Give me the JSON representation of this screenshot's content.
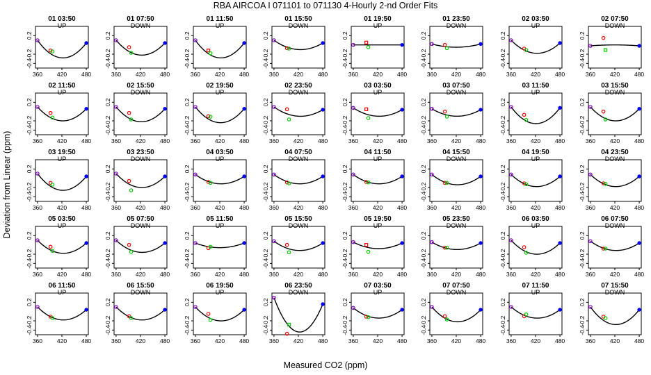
{
  "title": "RBA   AIRCOA I   071101 to 071130   4-Hourly 2-nd Order Fits",
  "xlabel": "Measured CO2 (ppm)",
  "ylabel": "Deviation from Linear (ppm)",
  "colors": {
    "curve": "#000000",
    "ref_points": "#0000ff",
    "up_points": "#ff0000",
    "fit_points": "#00cc00",
    "axes": "#000000"
  },
  "chart_data": {
    "type": "scatter",
    "xlim": [
      355,
      485
    ],
    "ylim": [
      -0.5,
      0.4
    ],
    "x_ticks": [
      360,
      420,
      480
    ],
    "x_tick_labels": [
      "360",
      "420",
      "480"
    ],
    "y_ticks": [
      0.2,
      -0.2,
      -0.4
    ],
    "y_tick_labels": [
      "0.2",
      "-0.2",
      "-0.4"
    ],
    "curve_reference_x": [
      360,
      480
    ],
    "panels": [
      {
        "time": "01 03:50",
        "dir": "UP",
        "curve": [
          0.1,
          -0.28,
          0.04
        ],
        "red": [
          392,
          -0.12
        ],
        "green": [
          397,
          -0.14
        ],
        "red_shape": "circle"
      },
      {
        "time": "01 07:50",
        "dir": "DOWN",
        "curve": [
          0.1,
          -0.22,
          0.04
        ],
        "red": [
          392,
          -0.05
        ],
        "green": [
          397,
          -0.17
        ],
        "red_shape": "circle"
      },
      {
        "time": "01 11:50",
        "dir": "UP",
        "curve": [
          0.1,
          -0.28,
          0.04
        ],
        "red": [
          392,
          -0.12
        ],
        "green": [
          397,
          -0.18
        ],
        "red_shape": "square"
      },
      {
        "time": "01 15:50",
        "dir": "DOWN",
        "curve": [
          0.1,
          -0.1,
          0.04
        ],
        "red": [
          392,
          -0.07
        ],
        "green": [
          397,
          -0.08
        ],
        "red_shape": "circle"
      },
      {
        "time": "01 19:50",
        "dir": "UP",
        "curve": [
          0.0,
          0.0,
          0.0
        ],
        "red": [
          392,
          0.05
        ],
        "green": [
          397,
          -0.05
        ],
        "red_shape": "square"
      },
      {
        "time": "01 23:50",
        "dir": "DOWN",
        "curve": [
          0.02,
          -0.05,
          0.02
        ],
        "red": [
          392,
          0.0
        ],
        "green": [
          397,
          -0.07
        ],
        "red_shape": "circle"
      },
      {
        "time": "02 03:50",
        "dir": "UP",
        "curve": [
          0.1,
          -0.18,
          0.04
        ],
        "red": [
          392,
          -0.08
        ],
        "green": [
          397,
          -0.11
        ],
        "red_shape": "circle"
      },
      {
        "time": "02 07:50",
        "dir": "DOWN",
        "curve": [
          -0.02,
          0.0,
          -0.02
        ],
        "red": [
          392,
          0.15
        ],
        "green": [
          397,
          -0.11
        ],
        "red_shape": "circle",
        "green_shape": "square"
      },
      {
        "time": "02 11:50",
        "dir": "UP",
        "curve": [
          0.1,
          -0.2,
          0.06
        ],
        "red": [
          392,
          -0.03
        ],
        "green": [
          397,
          -0.13
        ],
        "red_shape": "circle"
      },
      {
        "time": "02 15:50",
        "dir": "DOWN",
        "curve": [
          0.1,
          -0.22,
          0.06
        ],
        "red": [
          392,
          -0.03
        ],
        "green": [
          397,
          -0.17
        ],
        "red_shape": "circle"
      },
      {
        "time": "02 19:50",
        "dir": "UP",
        "curve": [
          0.1,
          -0.24,
          0.06
        ],
        "red": [
          392,
          -0.1
        ],
        "green": [
          397,
          -0.11
        ],
        "red_shape": "circle"
      },
      {
        "time": "02 23:50",
        "dir": "DOWN",
        "curve": [
          0.1,
          -0.1,
          0.04
        ],
        "red": [
          392,
          0.05
        ],
        "green": [
          397,
          -0.17
        ],
        "red_shape": "circle"
      },
      {
        "time": "03 03:50",
        "dir": "UP",
        "curve": [
          0.08,
          -0.1,
          0.04
        ],
        "red": [
          392,
          0.05
        ],
        "green": [
          397,
          -0.14
        ],
        "red_shape": "square"
      },
      {
        "time": "03 07:50",
        "dir": "DOWN",
        "curve": [
          0.06,
          -0.1,
          0.04
        ],
        "red": [
          392,
          0.0
        ],
        "green": [
          397,
          -0.11
        ],
        "red_shape": "circle"
      },
      {
        "time": "03 11:50",
        "dir": "UP",
        "curve": [
          0.1,
          -0.26,
          0.08
        ],
        "red": [
          392,
          -0.07
        ],
        "green": [
          397,
          -0.18
        ],
        "red_shape": "circle"
      },
      {
        "time": "03 15:50",
        "dir": "DOWN",
        "curve": [
          0.1,
          -0.2,
          0.06
        ],
        "red": [
          392,
          0.0
        ],
        "green": [
          397,
          -0.17
        ],
        "red_shape": "circle"
      },
      {
        "time": "03 19:50",
        "dir": "UP",
        "curve": [
          0.1,
          -0.26,
          0.04
        ],
        "red": [
          392,
          -0.1
        ],
        "green": [
          397,
          -0.14
        ],
        "red_shape": "circle"
      },
      {
        "time": "03 23:50",
        "dir": "DOWN",
        "curve": [
          0.1,
          -0.2,
          0.04
        ],
        "red": [
          392,
          -0.06
        ],
        "green": [
          397,
          -0.26
        ],
        "red_shape": "circle"
      },
      {
        "time": "04 03:50",
        "dir": "UP",
        "curve": [
          0.08,
          -0.12,
          0.04
        ],
        "red": [
          392,
          -0.08
        ],
        "green": [
          397,
          -0.1
        ],
        "red_shape": "circle"
      },
      {
        "time": "04 07:50",
        "dir": "DOWN",
        "curve": [
          0.08,
          -0.12,
          0.04
        ],
        "red": [
          392,
          -0.09
        ],
        "green": [
          397,
          -0.11
        ],
        "red_shape": "circle"
      },
      {
        "time": "04 11:50",
        "dir": "UP",
        "curve": [
          0.08,
          -0.12,
          0.04
        ],
        "red": [
          392,
          -0.08
        ],
        "green": [
          397,
          -0.09
        ],
        "red_shape": "circle"
      },
      {
        "time": "04 15:50",
        "dir": "DOWN",
        "curve": [
          0.08,
          -0.14,
          0.04
        ],
        "red": [
          392,
          -0.1
        ],
        "green": [
          397,
          -0.1
        ],
        "red_shape": "circle"
      },
      {
        "time": "04 19:50",
        "dir": "UP",
        "curve": [
          0.08,
          -0.18,
          0.04
        ],
        "red": [
          392,
          -0.11
        ],
        "green": [
          397,
          -0.13
        ],
        "red_shape": "circle"
      },
      {
        "time": "04 23:50",
        "dir": "DOWN",
        "curve": [
          0.08,
          -0.18,
          0.04
        ],
        "red": [
          392,
          -0.11
        ],
        "green": [
          397,
          -0.12
        ],
        "red_shape": "circle"
      },
      {
        "time": "05 03:50",
        "dir": "UP",
        "curve": [
          0.1,
          -0.18,
          0.04
        ],
        "red": [
          392,
          -0.04
        ],
        "green": [
          397,
          -0.13
        ],
        "red_shape": "circle"
      },
      {
        "time": "05 07:50",
        "dir": "DOWN",
        "curve": [
          0.1,
          -0.16,
          0.04
        ],
        "red": [
          392,
          0.0
        ],
        "green": [
          397,
          -0.15
        ],
        "red_shape": "circle"
      },
      {
        "time": "05 11:50",
        "dir": "UP",
        "curve": [
          0.04,
          -0.06,
          0.04
        ],
        "red": [
          392,
          -0.07
        ],
        "green": [
          397,
          -0.04
        ],
        "red_shape": "circle"
      },
      {
        "time": "05 15:50",
        "dir": "DOWN",
        "curve": [
          0.08,
          -0.12,
          0.04
        ],
        "red": [
          392,
          0.0
        ],
        "green": [
          397,
          -0.16
        ],
        "red_shape": "circle"
      },
      {
        "time": "05 19:50",
        "dir": "UP",
        "curve": [
          0.06,
          -0.08,
          0.04
        ],
        "red": [
          392,
          0.0
        ],
        "green": [
          397,
          -0.15
        ],
        "red_shape": "square"
      },
      {
        "time": "05 23:50",
        "dir": "DOWN",
        "curve": [
          0.06,
          -0.1,
          0.04
        ],
        "red": [
          392,
          -0.06
        ],
        "green": [
          397,
          -0.06
        ],
        "red_shape": "circle"
      },
      {
        "time": "06 03:50",
        "dir": "UP",
        "curve": [
          0.1,
          -0.2,
          0.04
        ],
        "red": [
          392,
          -0.05
        ],
        "green": [
          397,
          -0.17
        ],
        "red_shape": "circle"
      },
      {
        "time": "06 07:50",
        "dir": "DOWN",
        "curve": [
          0.08,
          -0.12,
          0.04
        ],
        "red": [
          392,
          -0.08
        ],
        "green": [
          397,
          -0.08
        ],
        "red_shape": "circle"
      },
      {
        "time": "06 11:50",
        "dir": "UP",
        "curve": [
          0.1,
          -0.18,
          0.04
        ],
        "red": [
          392,
          -0.11
        ],
        "green": [
          397,
          -0.14
        ],
        "red_shape": "circle"
      },
      {
        "time": "06 15:50",
        "dir": "DOWN",
        "curve": [
          0.1,
          -0.18,
          0.04
        ],
        "red": [
          392,
          -0.1
        ],
        "green": [
          397,
          -0.14
        ],
        "red_shape": "circle"
      },
      {
        "time": "06 19:50",
        "dir": "UP",
        "curve": [
          0.1,
          -0.2,
          0.04
        ],
        "red": [
          392,
          -0.05
        ],
        "green": [
          397,
          -0.18
        ],
        "red_shape": "circle"
      },
      {
        "time": "06 23:50",
        "dir": "DOWN",
        "curve": [
          0.3,
          -0.44,
          0.16
        ],
        "red": [
          392,
          -0.48
        ],
        "green": [
          397,
          -0.28
        ],
        "red_shape": "circle",
        "green_shape": "square"
      },
      {
        "time": "07 03:50",
        "dir": "UP",
        "curve": [
          0.08,
          -0.14,
          0.04
        ],
        "red": [
          392,
          -0.11
        ],
        "green": [
          397,
          -0.12
        ],
        "red_shape": "circle"
      },
      {
        "time": "07 07:50",
        "dir": "DOWN",
        "curve": [
          0.1,
          -0.22,
          0.04
        ],
        "red": [
          392,
          -0.1
        ],
        "green": [
          397,
          -0.17
        ],
        "red_shape": "circle"
      },
      {
        "time": "07 11:50",
        "dir": "UP",
        "curve": [
          0.1,
          -0.14,
          0.04
        ],
        "red": [
          392,
          -0.1
        ],
        "green": [
          397,
          -0.06
        ],
        "red_shape": "circle"
      },
      {
        "time": "07 15:50",
        "dir": "DOWN",
        "curve": [
          0.1,
          -0.28,
          0.04
        ],
        "red": [
          392,
          -0.11
        ],
        "green": [
          397,
          -0.14
        ],
        "red_shape": "circle"
      }
    ]
  }
}
